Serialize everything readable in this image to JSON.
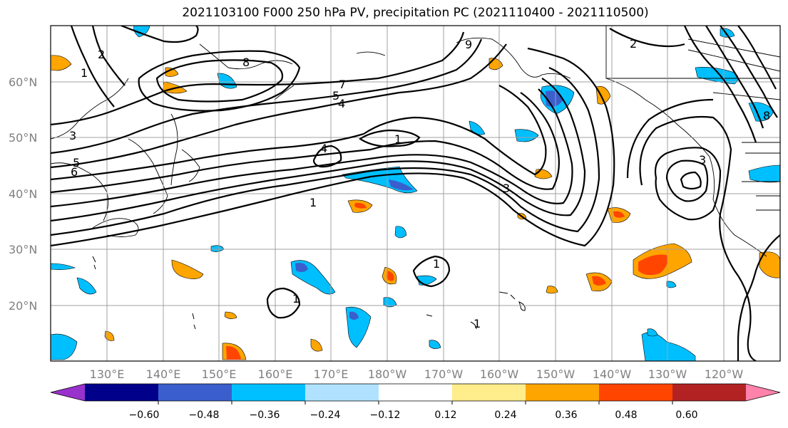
{
  "title": "2021103100 F000 250 hPa PV, precipitation PC (2021110400 - 2021110500)",
  "map": {
    "lat_labels": [
      "60°N",
      "50°N",
      "40°N",
      "30°N",
      "20°N"
    ],
    "lon_labels": [
      "130°E",
      "140°E",
      "150°E",
      "160°E",
      "170°E",
      "180°W",
      "170°W",
      "160°W",
      "150°W",
      "140°W",
      "130°W",
      "120°W"
    ],
    "contour_labels": [
      "8",
      "7",
      "5",
      "4",
      "1",
      "3",
      "2",
      "1",
      "5",
      "6",
      "4",
      "1",
      "1",
      "1",
      "1",
      "3",
      "2",
      "3",
      "9",
      "8"
    ]
  },
  "colorbar": {
    "ticks": [
      "−0.60",
      "−0.48",
      "−0.36",
      "−0.24",
      "−0.12",
      "0.12",
      "0.24",
      "0.36",
      "0.48",
      "0.60"
    ],
    "colors": [
      "#9932cc",
      "#00008b",
      "#3a5fcd",
      "#00bfff",
      "#b0e2ff",
      "#ffffff",
      "#ffec8b",
      "#ffa500",
      "#ff4500",
      "#b22222",
      "#ff82ab"
    ]
  }
}
